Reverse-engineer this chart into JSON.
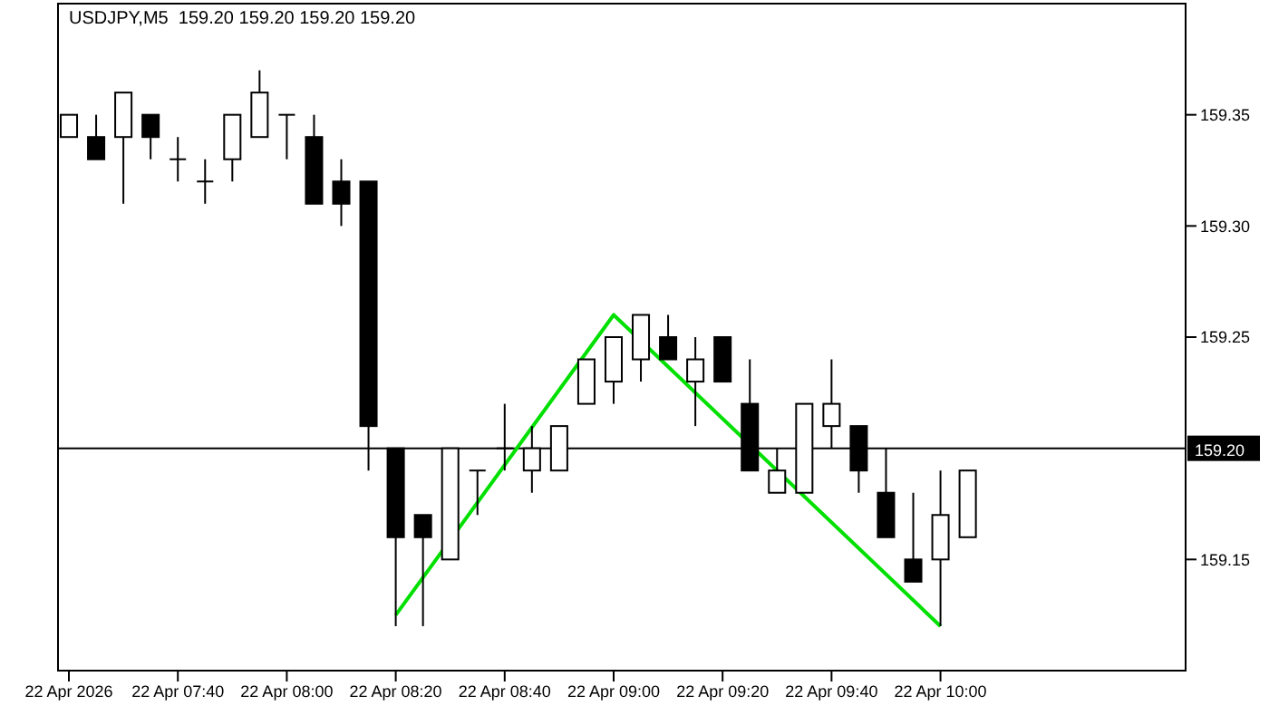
{
  "chart_data": {
    "type": "candlestick",
    "title": "USDJPY,M5  159.20 159.20 159.20 159.20",
    "x": [
      "2026-04-22T07:20",
      "2026-04-22T07:25",
      "2026-04-22T07:30",
      "2026-04-22T07:35",
      "2026-04-22T07:40",
      "2026-04-22T07:45",
      "2026-04-22T07:50",
      "2026-04-22T07:55",
      "2026-04-22T08:00",
      "2026-04-22T08:05",
      "2026-04-22T08:10",
      "2026-04-22T08:15",
      "2026-04-22T08:20",
      "2026-04-22T08:25",
      "2026-04-22T08:30",
      "2026-04-22T08:35",
      "2026-04-22T08:40",
      "2026-04-22T08:45",
      "2026-04-22T08:50",
      "2026-04-22T08:55",
      "2026-04-22T09:00",
      "2026-04-22T09:05",
      "2026-04-22T09:10",
      "2026-04-22T09:15",
      "2026-04-22T09:20",
      "2026-04-22T09:25",
      "2026-04-22T09:30",
      "2026-04-22T09:35",
      "2026-04-22T09:40",
      "2026-04-22T09:45",
      "2026-04-22T09:50",
      "2026-04-22T09:55",
      "2026-04-22T10:00",
      "2026-04-22T10:05"
    ],
    "ohlc": [
      [
        159.34,
        159.35,
        159.34,
        159.35
      ],
      [
        159.34,
        159.35,
        159.33,
        159.33
      ],
      [
        159.34,
        159.36,
        159.31,
        159.36
      ],
      [
        159.35,
        159.35,
        159.33,
        159.34
      ],
      [
        159.33,
        159.34,
        159.32,
        159.33
      ],
      [
        159.32,
        159.33,
        159.31,
        159.32
      ],
      [
        159.33,
        159.35,
        159.32,
        159.35
      ],
      [
        159.34,
        159.37,
        159.34,
        159.36
      ],
      [
        159.35,
        159.35,
        159.33,
        159.35
      ],
      [
        159.34,
        159.35,
        159.31,
        159.31
      ],
      [
        159.32,
        159.33,
        159.3,
        159.31
      ],
      [
        159.32,
        159.32,
        159.19,
        159.21
      ],
      [
        159.2,
        159.2,
        159.12,
        159.16
      ],
      [
        159.17,
        159.17,
        159.12,
        159.16
      ],
      [
        159.15,
        159.2,
        159.15,
        159.2
      ],
      [
        159.19,
        159.19,
        159.17,
        159.19
      ],
      [
        159.2,
        159.22,
        159.19,
        159.2
      ],
      [
        159.19,
        159.21,
        159.18,
        159.2
      ],
      [
        159.19,
        159.21,
        159.19,
        159.21
      ],
      [
        159.22,
        159.24,
        159.22,
        159.24
      ],
      [
        159.23,
        159.25,
        159.22,
        159.25
      ],
      [
        159.24,
        159.26,
        159.23,
        159.26
      ],
      [
        159.25,
        159.26,
        159.24,
        159.24
      ],
      [
        159.23,
        159.25,
        159.21,
        159.24
      ],
      [
        159.25,
        159.25,
        159.23,
        159.23
      ],
      [
        159.22,
        159.24,
        159.19,
        159.19
      ],
      [
        159.18,
        159.2,
        159.18,
        159.19
      ],
      [
        159.18,
        159.22,
        159.18,
        159.22
      ],
      [
        159.21,
        159.24,
        159.2,
        159.22
      ],
      [
        159.21,
        159.21,
        159.18,
        159.19
      ],
      [
        159.18,
        159.2,
        159.16,
        159.16
      ],
      [
        159.15,
        159.18,
        159.14,
        159.14
      ],
      [
        159.15,
        159.19,
        159.12,
        159.17
      ],
      [
        159.16,
        159.19,
        159.16,
        159.19
      ]
    ],
    "series": [
      {
        "type": "line",
        "color": "#00e000",
        "x": [
          "2026-04-22T08:20",
          "2026-04-22T09:00",
          "2026-04-22T10:00"
        ],
        "values": [
          159.125,
          159.26,
          159.12
        ]
      }
    ],
    "xlim": [
      "2026-04-22T07:18",
      "2026-04-22T10:45"
    ],
    "xticks": [
      {
        "value": "2026-04-22T07:20",
        "label": "22 Apr 2026"
      },
      {
        "value": "2026-04-22T07:40",
        "label": "22 Apr 07:40"
      },
      {
        "value": "2026-04-22T08:00",
        "label": "22 Apr 08:00"
      },
      {
        "value": "2026-04-22T08:20",
        "label": "22 Apr 08:20"
      },
      {
        "value": "2026-04-22T08:40",
        "label": "22 Apr 08:40"
      },
      {
        "value": "2026-04-22T09:00",
        "label": "22 Apr 09:00"
      },
      {
        "value": "2026-04-22T09:20",
        "label": "22 Apr 09:20"
      },
      {
        "value": "2026-04-22T09:40",
        "label": "22 Apr 09:40"
      },
      {
        "value": "2026-04-22T10:00",
        "label": "22 Apr 10:00"
      }
    ],
    "ylim": [
      159.1,
      159.4
    ],
    "yticks": [
      {
        "value": 159.15,
        "label": "159.15"
      },
      {
        "value": 159.25,
        "label": "159.25"
      },
      {
        "value": 159.3,
        "label": "159.30"
      },
      {
        "value": 159.35,
        "label": "159.35"
      }
    ],
    "ref_lines": [
      {
        "axis": "y",
        "value": 159.2,
        "label": "159.20",
        "color": "#000000"
      }
    ]
  }
}
